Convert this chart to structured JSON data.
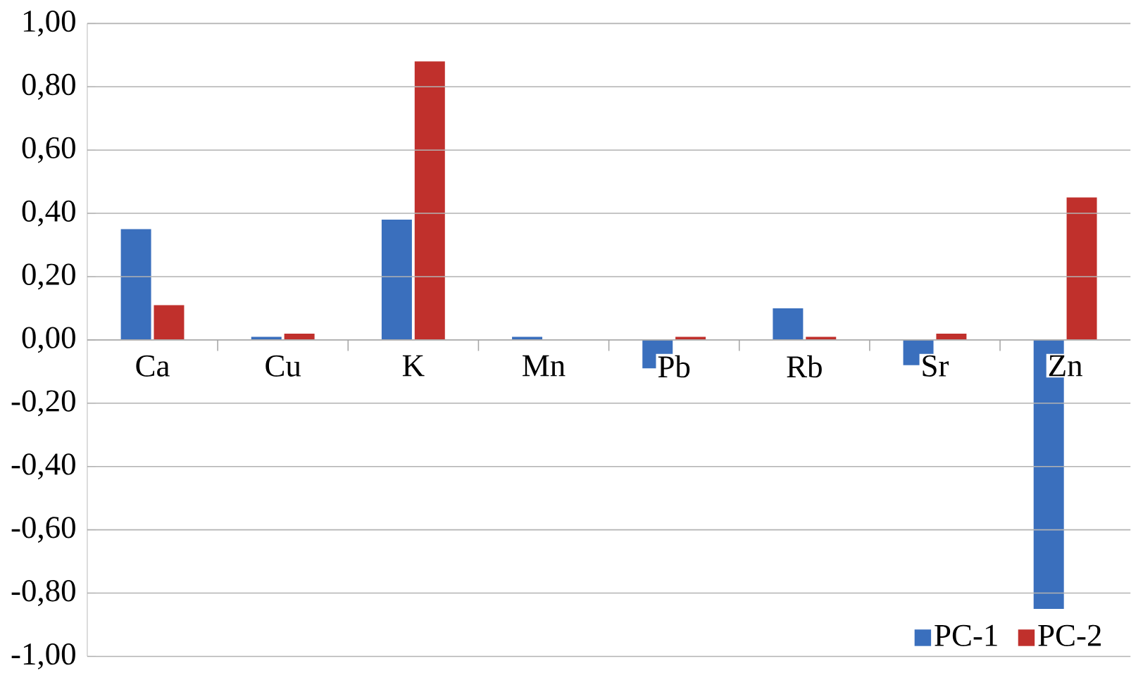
{
  "chart_data": {
    "type": "bar",
    "categories": [
      "Ca",
      "Cu",
      "K",
      "Mn",
      "Pb",
      "Rb",
      "Sr",
      "Zn"
    ],
    "series": [
      {
        "name": "PC-1",
        "color": "#3a6fbd",
        "values": [
          0.35,
          0.01,
          0.38,
          0.01,
          -0.09,
          0.1,
          -0.08,
          -0.85
        ]
      },
      {
        "name": "PC-2",
        "color": "#c0302c",
        "values": [
          0.11,
          0.02,
          0.88,
          0.0,
          0.01,
          0.01,
          0.02,
          0.45
        ]
      }
    ],
    "ylim": [
      -1.0,
      1.0
    ],
    "yticks": [
      {
        "value": -1.0,
        "label": "-1,00"
      },
      {
        "value": -0.8,
        "label": "-0,80"
      },
      {
        "value": -0.6,
        "label": "-0,60"
      },
      {
        "value": -0.4,
        "label": "-0,40"
      },
      {
        "value": -0.2,
        "label": "-0,20"
      },
      {
        "value": 0.0,
        "label": "0,00"
      },
      {
        "value": 0.2,
        "label": "0,20"
      },
      {
        "value": 0.4,
        "label": "0,40"
      },
      {
        "value": 0.6,
        "label": "0,60"
      },
      {
        "value": 0.8,
        "label": "0,80"
      },
      {
        "value": 1.0,
        "label": "1,00"
      }
    ],
    "grid": "y",
    "legend": "bottom right"
  }
}
